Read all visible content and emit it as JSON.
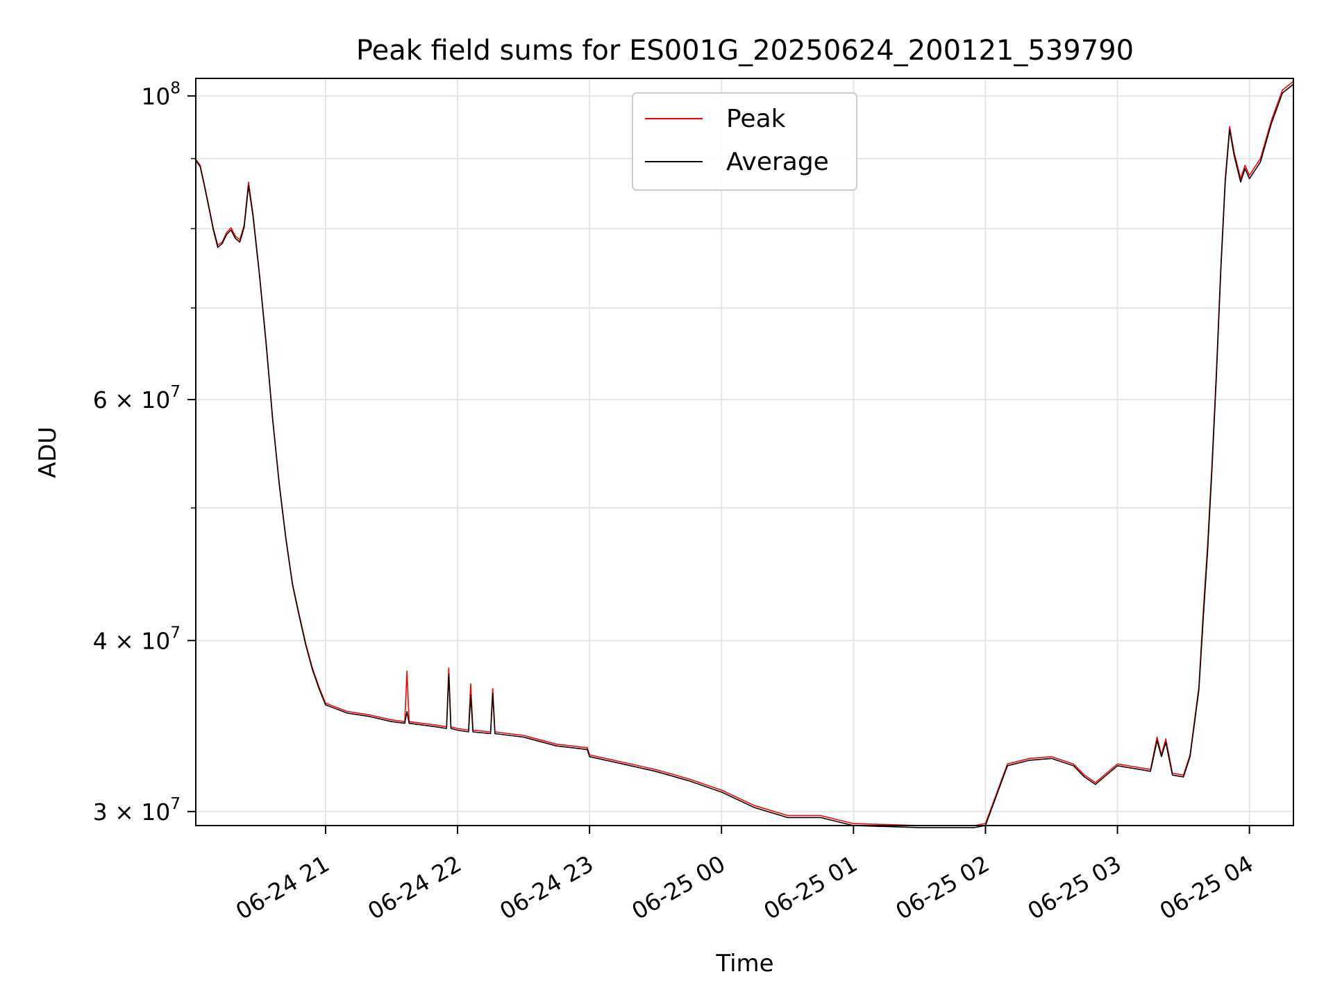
{
  "chart_data": {
    "type": "line",
    "title": "Peak field sums for ES001G_20250624_200121_539790",
    "xlabel": "Time",
    "ylabel": "ADU",
    "yscale": "log",
    "xlim": [
      "2025-06-24 20:01",
      "2025-06-25 04:20"
    ],
    "ylim": [
      29300000,
      103000000
    ],
    "grid": true,
    "legend_position": "upper-center",
    "x_ticks": [
      "2025-06-24 21:00",
      "2025-06-24 22:00",
      "2025-06-24 23:00",
      "2025-06-25 00:00",
      "2025-06-25 01:00",
      "2025-06-25 02:00",
      "2025-06-25 03:00",
      "2025-06-25 04:00"
    ],
    "x_tick_labels": [
      "06-24 21",
      "06-24 22",
      "06-24 23",
      "06-25 00",
      "06-25 01",
      "06-25 02",
      "06-25 03",
      "06-25 04"
    ],
    "y_ticks": [
      {
        "value": 30000000,
        "mant": "3",
        "exp": "7"
      },
      {
        "value": 40000000,
        "mant": "4",
        "exp": "7"
      },
      {
        "value": 60000000,
        "mant": "6",
        "exp": "7"
      },
      {
        "value": 100000000,
        "mant": "",
        "exp": "8"
      }
    ],
    "y_minor_ticks": [
      50000000,
      70000000,
      80000000,
      90000000
    ],
    "y_tick_base": "10",
    "y_tick_times": "×",
    "colors": {
      "peak": "#ff0000",
      "average": "#000000",
      "grid": "#e5e5e5"
    },
    "series": [
      {
        "name": "Peak",
        "key": "peak",
        "x": [
          "2025-06-24 20:01",
          "2025-06-24 20:03",
          "2025-06-24 20:05",
          "2025-06-24 20:07",
          "2025-06-24 20:09",
          "2025-06-24 20:11",
          "2025-06-24 20:13",
          "2025-06-24 20:15",
          "2025-06-24 20:17",
          "2025-06-24 20:19",
          "2025-06-24 20:21",
          "2025-06-24 20:23",
          "2025-06-24 20:25",
          "2025-06-24 20:27",
          "2025-06-24 20:30",
          "2025-06-24 20:33",
          "2025-06-24 20:36",
          "2025-06-24 20:39",
          "2025-06-24 20:42",
          "2025-06-24 20:45",
          "2025-06-24 20:48",
          "2025-06-24 20:51",
          "2025-06-24 20:54",
          "2025-06-24 20:57",
          "2025-06-24 21:00",
          "2025-06-24 21:10",
          "2025-06-24 21:20",
          "2025-06-24 21:30",
          "2025-06-24 21:36",
          "2025-06-24 21:37",
          "2025-06-24 21:38",
          "2025-06-24 21:50",
          "2025-06-24 21:55",
          "2025-06-24 21:56",
          "2025-06-24 21:57",
          "2025-06-24 22:00",
          "2025-06-24 22:05",
          "2025-06-24 22:06",
          "2025-06-24 22:07",
          "2025-06-24 22:15",
          "2025-06-24 22:16",
          "2025-06-24 22:17",
          "2025-06-24 22:30",
          "2025-06-24 22:45",
          "2025-06-24 22:59",
          "2025-06-24 23:00",
          "2025-06-24 23:15",
          "2025-06-24 23:30",
          "2025-06-24 23:45",
          "2025-06-25 00:00",
          "2025-06-25 00:15",
          "2025-06-25 00:30",
          "2025-06-25 00:45",
          "2025-06-25 01:00",
          "2025-06-25 01:30",
          "2025-06-25 01:45",
          "2025-06-25 01:55",
          "2025-06-25 02:00",
          "2025-06-25 02:10",
          "2025-06-25 02:20",
          "2025-06-25 02:30",
          "2025-06-25 02:40",
          "2025-06-25 02:45",
          "2025-06-25 02:50",
          "2025-06-25 03:00",
          "2025-06-25 03:10",
          "2025-06-25 03:15",
          "2025-06-25 03:18",
          "2025-06-25 03:20",
          "2025-06-25 03:22",
          "2025-06-25 03:25",
          "2025-06-25 03:30",
          "2025-06-25 03:33",
          "2025-06-25 03:37",
          "2025-06-25 03:39",
          "2025-06-25 03:41",
          "2025-06-25 03:43",
          "2025-06-25 03:45",
          "2025-06-25 03:47",
          "2025-06-25 03:49",
          "2025-06-25 03:51",
          "2025-06-25 03:53",
          "2025-06-25 03:56",
          "2025-06-25 03:58",
          "2025-06-25 04:00",
          "2025-06-25 04:05",
          "2025-06-25 04:10",
          "2025-06-25 04:15",
          "2025-06-25 04:20"
        ],
        "y": [
          89900000,
          89000000,
          86000000,
          83000000,
          80000000,
          77800000,
          78200000,
          79500000,
          80100000,
          79000000,
          78500000,
          80500000,
          86500000,
          82000000,
          74000000,
          66000000,
          58000000,
          52000000,
          47500000,
          44000000,
          41800000,
          39800000,
          38200000,
          37000000,
          36000000,
          35500000,
          35300000,
          35000000,
          34900000,
          38000000,
          34900000,
          34700000,
          34600000,
          38200000,
          34600000,
          34500000,
          34400000,
          37200000,
          34400000,
          34300000,
          36900000,
          34300000,
          34100000,
          33600000,
          33400000,
          33000000,
          32600000,
          32200000,
          31700000,
          31100000,
          30300000,
          29800000,
          29800000,
          29400000,
          29300000,
          29300000,
          29300000,
          29400000,
          32500000,
          32800000,
          32900000,
          32500000,
          31900000,
          31500000,
          32500000,
          32300000,
          32200000,
          34000000,
          33000000,
          33900000,
          32000000,
          31900000,
          33000000,
          37000000,
          42000000,
          47000000,
          54000000,
          63000000,
          75000000,
          87000000,
          95000000,
          91000000,
          87000000,
          89000000,
          87500000,
          90000000,
          96000000,
          101000000,
          102500000
        ]
      },
      {
        "name": "Average",
        "key": "average",
        "x": [
          "2025-06-24 20:01",
          "2025-06-24 20:03",
          "2025-06-24 20:05",
          "2025-06-24 20:07",
          "2025-06-24 20:09",
          "2025-06-24 20:11",
          "2025-06-24 20:13",
          "2025-06-24 20:15",
          "2025-06-24 20:17",
          "2025-06-24 20:19",
          "2025-06-24 20:21",
          "2025-06-24 20:23",
          "2025-06-24 20:25",
          "2025-06-24 20:27",
          "2025-06-24 20:30",
          "2025-06-24 20:33",
          "2025-06-24 20:36",
          "2025-06-24 20:39",
          "2025-06-24 20:42",
          "2025-06-24 20:45",
          "2025-06-24 20:48",
          "2025-06-24 20:51",
          "2025-06-24 20:54",
          "2025-06-24 20:57",
          "2025-06-24 21:00",
          "2025-06-24 21:10",
          "2025-06-24 21:20",
          "2025-06-24 21:30",
          "2025-06-24 21:36",
          "2025-06-24 21:37",
          "2025-06-24 21:38",
          "2025-06-24 21:50",
          "2025-06-24 21:55",
          "2025-06-24 21:56",
          "2025-06-24 21:57",
          "2025-06-24 22:00",
          "2025-06-24 22:05",
          "2025-06-24 22:06",
          "2025-06-24 22:07",
          "2025-06-24 22:15",
          "2025-06-24 22:16",
          "2025-06-24 22:17",
          "2025-06-24 22:30",
          "2025-06-24 22:45",
          "2025-06-24 22:59",
          "2025-06-24 23:00",
          "2025-06-24 23:15",
          "2025-06-24 23:30",
          "2025-06-24 23:45",
          "2025-06-25 00:00",
          "2025-06-25 00:15",
          "2025-06-25 00:30",
          "2025-06-25 00:45",
          "2025-06-25 01:00",
          "2025-06-25 01:30",
          "2025-06-25 01:45",
          "2025-06-25 01:55",
          "2025-06-25 02:00",
          "2025-06-25 02:10",
          "2025-06-25 02:20",
          "2025-06-25 02:30",
          "2025-06-25 02:40",
          "2025-06-25 02:45",
          "2025-06-25 02:50",
          "2025-06-25 03:00",
          "2025-06-25 03:10",
          "2025-06-25 03:15",
          "2025-06-25 03:18",
          "2025-06-25 03:20",
          "2025-06-25 03:22",
          "2025-06-25 03:25",
          "2025-06-25 03:30",
          "2025-06-25 03:33",
          "2025-06-25 03:37",
          "2025-06-25 03:39",
          "2025-06-25 03:41",
          "2025-06-25 03:43",
          "2025-06-25 03:45",
          "2025-06-25 03:47",
          "2025-06-25 03:49",
          "2025-06-25 03:51",
          "2025-06-25 03:53",
          "2025-06-25 03:56",
          "2025-06-25 03:58",
          "2025-06-25 04:00",
          "2025-06-25 04:05",
          "2025-06-25 04:10",
          "2025-06-25 04:15",
          "2025-06-25 04:20"
        ],
        "y": [
          89700000,
          88800000,
          85800000,
          82800000,
          79800000,
          77500000,
          78000000,
          79200000,
          79800000,
          78700000,
          78200000,
          80200000,
          86000000,
          81700000,
          73800000,
          65800000,
          57900000,
          51900000,
          47400000,
          43900000,
          41700000,
          39700000,
          38100000,
          36900000,
          35900000,
          35400000,
          35200000,
          34900000,
          34800000,
          35500000,
          34800000,
          34600000,
          34500000,
          37800000,
          34500000,
          34400000,
          34300000,
          36500000,
          34300000,
          34200000,
          36600000,
          34200000,
          34000000,
          33500000,
          33300000,
          32900000,
          32500000,
          32100000,
          31600000,
          31000000,
          30200000,
          29700000,
          29700000,
          29300000,
          29200000,
          29200000,
          29200000,
          29300000,
          32400000,
          32700000,
          32800000,
          32400000,
          31800000,
          31400000,
          32400000,
          32200000,
          32100000,
          33800000,
          32900000,
          33700000,
          31900000,
          31800000,
          32900000,
          36800000,
          41500000,
          46500000,
          53500000,
          62500000,
          74500000,
          86500000,
          94500000,
          90500000,
          86500000,
          88500000,
          87000000,
          89500000,
          95500000,
          100500000,
          102000000
        ]
      }
    ],
    "spikes_note": ""
  }
}
